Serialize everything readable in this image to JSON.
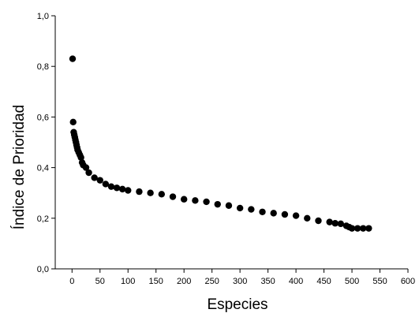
{
  "chart_data": {
    "type": "scatter",
    "title": "",
    "xlabel": "Especies",
    "ylabel": "Índice de Prioridad",
    "xlim": [
      -30,
      600
    ],
    "ylim": [
      0.0,
      1.0
    ],
    "x_ticks": [
      0,
      50,
      100,
      150,
      200,
      250,
      300,
      350,
      400,
      450,
      500,
      550,
      600
    ],
    "x_tick_labels": [
      "0",
      "50",
      "100",
      "150",
      "200",
      "250",
      "300",
      "350",
      "400",
      "450",
      "500",
      "550",
      "600"
    ],
    "y_ticks": [
      0.0,
      0.2,
      0.4,
      0.6,
      0.8,
      1.0
    ],
    "y_tick_labels": [
      "0,0",
      "0,2",
      "0,4",
      "0,6",
      "0,8",
      "1,0"
    ],
    "grid": false,
    "marker_color": "#000000",
    "series": [
      {
        "x": [
          1,
          2,
          3,
          4,
          5,
          6,
          7,
          8,
          9,
          10,
          12,
          14,
          16,
          18,
          20,
          25,
          30,
          40,
          50,
          60,
          70,
          80,
          90,
          100,
          120,
          140,
          160,
          180,
          200,
          220,
          240,
          260,
          280,
          300,
          320,
          340,
          360,
          380,
          400,
          420,
          440,
          460,
          470,
          480,
          490,
          495,
          500,
          510,
          520,
          530
        ],
        "y": [
          0.83,
          0.58,
          0.54,
          0.53,
          0.52,
          0.51,
          0.5,
          0.49,
          0.48,
          0.47,
          0.46,
          0.45,
          0.44,
          0.42,
          0.41,
          0.4,
          0.38,
          0.36,
          0.35,
          0.335,
          0.325,
          0.32,
          0.315,
          0.31,
          0.305,
          0.3,
          0.295,
          0.285,
          0.275,
          0.27,
          0.265,
          0.255,
          0.25,
          0.24,
          0.235,
          0.225,
          0.22,
          0.215,
          0.21,
          0.2,
          0.19,
          0.185,
          0.18,
          0.178,
          0.17,
          0.165,
          0.16,
          0.16,
          0.16,
          0.16
        ]
      }
    ]
  }
}
